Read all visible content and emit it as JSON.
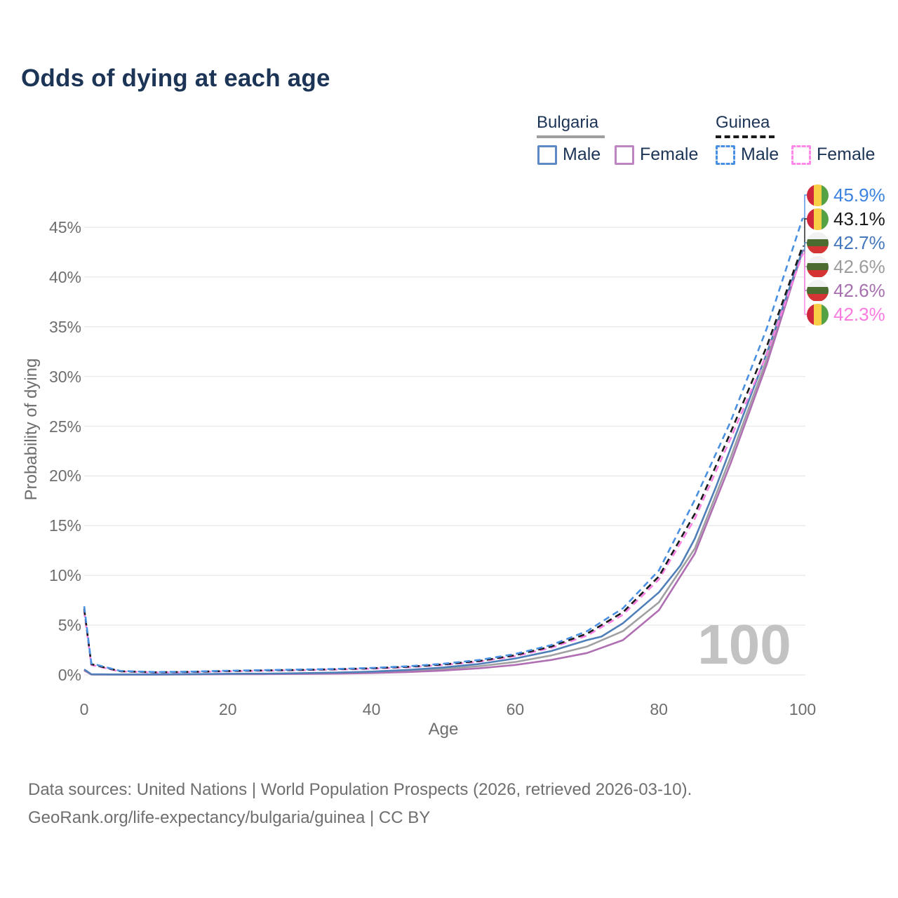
{
  "title": "Odds of dying at each age",
  "colors": {
    "title_text": "#1c3456",
    "axis_text": "#6e6e6e",
    "grid": "#ebebeb",
    "watermark": "#c2c2c2"
  },
  "legend": {
    "groups": [
      {
        "label": "Bulgaria",
        "underline": {
          "color": "#9e9e9e",
          "dashed": false
        },
        "items": [
          {
            "label": "Male",
            "color": "#5d89c4",
            "dashed": false
          },
          {
            "label": "Female",
            "color": "#bf84c4",
            "dashed": false
          }
        ]
      },
      {
        "label": "Guinea",
        "underline": {
          "color": "#1a1a1a",
          "dashed": true
        },
        "items": [
          {
            "label": "Male",
            "color": "#4a90e2",
            "dashed": true
          },
          {
            "label": "Female",
            "color": "#ff88ea",
            "dashed": true
          }
        ]
      }
    ]
  },
  "flag_colors": {
    "guinea": [
      "#d0263c",
      "#f7ce46",
      "#55a245"
    ],
    "bulgaria": [
      "#f2f2f2",
      "#4c6b2f",
      "#d53434"
    ]
  },
  "chart_data": {
    "type": "line",
    "title": "Odds of dying at each age",
    "xlabel": "Age",
    "ylabel": "Probability of dying",
    "x_ticks": [
      0,
      20,
      40,
      60,
      80,
      100
    ],
    "y_ticks": [
      0,
      5,
      10,
      15,
      20,
      25,
      30,
      35,
      40,
      45
    ],
    "y_tick_suffix": "%",
    "xlim": [
      0,
      100
    ],
    "ylim": [
      0,
      47
    ],
    "grid": "horizontal",
    "legend_position": "top-right",
    "watermark": "100",
    "draw_order": [
      "bulgaria-both",
      "bulgaria-female",
      "bulgaria-male",
      "guinea-female",
      "guinea-both",
      "guinea-male"
    ],
    "series": [
      {
        "id": "guinea-male",
        "country": "Guinea",
        "sex": "Male",
        "color": "#4a90e2",
        "dashed": true,
        "points": [
          [
            0,
            6.9
          ],
          [
            1,
            1.15
          ],
          [
            5,
            0.4
          ],
          [
            10,
            0.28
          ],
          [
            15,
            0.33
          ],
          [
            20,
            0.42
          ],
          [
            25,
            0.48
          ],
          [
            30,
            0.54
          ],
          [
            35,
            0.6
          ],
          [
            40,
            0.7
          ],
          [
            45,
            0.87
          ],
          [
            50,
            1.12
          ],
          [
            55,
            1.5
          ],
          [
            60,
            2.1
          ],
          [
            65,
            3.0
          ],
          [
            70,
            4.4
          ],
          [
            75,
            6.7
          ],
          [
            80,
            10.5
          ],
          [
            85,
            17.6
          ],
          [
            90,
            25.5
          ],
          [
            95,
            34.8
          ],
          [
            100,
            45.9
          ]
        ]
      },
      {
        "id": "guinea-both",
        "country": "Guinea",
        "sex": "Both",
        "color": "#1b1b1b",
        "dashed": true,
        "points": [
          [
            0,
            6.65
          ],
          [
            1,
            1.08
          ],
          [
            5,
            0.37
          ],
          [
            10,
            0.26
          ],
          [
            15,
            0.31
          ],
          [
            20,
            0.39
          ],
          [
            25,
            0.45
          ],
          [
            30,
            0.5
          ],
          [
            35,
            0.57
          ],
          [
            40,
            0.66
          ],
          [
            45,
            0.82
          ],
          [
            50,
            1.05
          ],
          [
            55,
            1.4
          ],
          [
            60,
            1.98
          ],
          [
            65,
            2.85
          ],
          [
            70,
            4.15
          ],
          [
            75,
            6.3
          ],
          [
            80,
            9.9
          ],
          [
            85,
            16.2
          ],
          [
            90,
            24.4
          ],
          [
            95,
            33.0
          ],
          [
            100,
            43.1
          ]
        ]
      },
      {
        "id": "guinea-female",
        "country": "Guinea",
        "sex": "Female",
        "color": "#fb80e3",
        "dashed": true,
        "points": [
          [
            0,
            6.4
          ],
          [
            1,
            1.0
          ],
          [
            5,
            0.34
          ],
          [
            10,
            0.24
          ],
          [
            15,
            0.29
          ],
          [
            20,
            0.36
          ],
          [
            25,
            0.42
          ],
          [
            30,
            0.47
          ],
          [
            35,
            0.53
          ],
          [
            40,
            0.62
          ],
          [
            45,
            0.77
          ],
          [
            50,
            1.0
          ],
          [
            55,
            1.33
          ],
          [
            60,
            1.88
          ],
          [
            65,
            2.72
          ],
          [
            70,
            3.95
          ],
          [
            75,
            6.05
          ],
          [
            80,
            9.6
          ],
          [
            85,
            15.7
          ],
          [
            90,
            23.8
          ],
          [
            95,
            32.2
          ],
          [
            100,
            42.3
          ]
        ]
      },
      {
        "id": "bulgaria-male",
        "country": "Bulgaria",
        "sex": "Male",
        "color": "#4e7fb8",
        "dashed": false,
        "points": [
          [
            0,
            0.55
          ],
          [
            1,
            0.06
          ],
          [
            5,
            0.04
          ],
          [
            10,
            0.05
          ],
          [
            15,
            0.08
          ],
          [
            20,
            0.11
          ],
          [
            25,
            0.13
          ],
          [
            30,
            0.17
          ],
          [
            35,
            0.23
          ],
          [
            40,
            0.33
          ],
          [
            45,
            0.5
          ],
          [
            50,
            0.75
          ],
          [
            55,
            1.1
          ],
          [
            60,
            1.65
          ],
          [
            65,
            2.4
          ],
          [
            70,
            3.5
          ],
          [
            72,
            3.85
          ],
          [
            75,
            5.2
          ],
          [
            80,
            8.3
          ],
          [
            82,
            10.1
          ],
          [
            83,
            11.0
          ],
          [
            85,
            13.7
          ],
          [
            88,
            19.0
          ],
          [
            90,
            22.8
          ],
          [
            95,
            32.3
          ],
          [
            100,
            42.7
          ]
        ]
      },
      {
        "id": "bulgaria-both",
        "country": "Bulgaria",
        "sex": "Both",
        "color": "#9fa0a2",
        "dashed": false,
        "points": [
          [
            0,
            0.5
          ],
          [
            1,
            0.05
          ],
          [
            5,
            0.03
          ],
          [
            10,
            0.04
          ],
          [
            15,
            0.06
          ],
          [
            20,
            0.09
          ],
          [
            25,
            0.11
          ],
          [
            30,
            0.14
          ],
          [
            35,
            0.18
          ],
          [
            40,
            0.27
          ],
          [
            45,
            0.4
          ],
          [
            50,
            0.6
          ],
          [
            55,
            0.88
          ],
          [
            60,
            1.3
          ],
          [
            65,
            1.95
          ],
          [
            70,
            2.85
          ],
          [
            75,
            4.4
          ],
          [
            80,
            7.3
          ],
          [
            85,
            12.7
          ],
          [
            90,
            21.9
          ],
          [
            95,
            31.7
          ],
          [
            100,
            42.6
          ]
        ]
      },
      {
        "id": "bulgaria-female",
        "country": "Bulgaria",
        "sex": "Female",
        "color": "#b06fb2",
        "dashed": false,
        "points": [
          [
            0,
            0.45
          ],
          [
            1,
            0.04
          ],
          [
            5,
            0.03
          ],
          [
            10,
            0.03
          ],
          [
            15,
            0.05
          ],
          [
            20,
            0.07
          ],
          [
            25,
            0.08
          ],
          [
            30,
            0.1
          ],
          [
            35,
            0.13
          ],
          [
            40,
            0.19
          ],
          [
            45,
            0.29
          ],
          [
            50,
            0.44
          ],
          [
            55,
            0.66
          ],
          [
            60,
            1.0
          ],
          [
            65,
            1.5
          ],
          [
            70,
            2.2
          ],
          [
            75,
            3.5
          ],
          [
            80,
            6.5
          ],
          [
            85,
            12.2
          ],
          [
            90,
            21.3
          ],
          [
            95,
            31.2
          ],
          [
            100,
            42.6
          ]
        ]
      }
    ],
    "end_labels": [
      {
        "series": "guinea-male",
        "text": "45.9%",
        "value": 45.9,
        "color": "#3c82e0",
        "flag": "guinea"
      },
      {
        "series": "guinea-both",
        "text": "43.1%",
        "value": 43.1,
        "color": "#1a1a1a",
        "flag": "guinea"
      },
      {
        "series": "bulgaria-male",
        "text": "42.7%",
        "value": 42.7,
        "color": "#4577bd",
        "flag": "bulgaria"
      },
      {
        "series": "bulgaria-both",
        "text": "42.6%",
        "value": 42.6,
        "color": "#9c9c9c",
        "flag": "bulgaria"
      },
      {
        "series": "bulgaria-female",
        "text": "42.6%",
        "value": 42.6,
        "color": "#a670ae",
        "flag": "bulgaria"
      },
      {
        "series": "guinea-female",
        "text": "42.3%",
        "value": 42.3,
        "color": "#fa7be0",
        "flag": "guinea"
      }
    ]
  },
  "footer": {
    "line1": "Data sources: United Nations | World Population Prospects (2026, retrieved 2026-03-10).",
    "line2": "GeoRank.org/life-expectancy/bulgaria/guinea | CC BY"
  }
}
